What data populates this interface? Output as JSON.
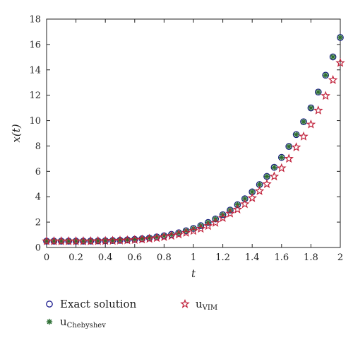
{
  "chart_data": {
    "type": "scatter",
    "xlabel": "t",
    "ylabel": "x(t)",
    "xlim": [
      0,
      2
    ],
    "ylim": [
      0,
      18
    ],
    "xticks": [
      "0",
      "0.2",
      "0.4",
      "0.6",
      "0.8",
      "1",
      "1.2",
      "1.4",
      "1.6",
      "1.8",
      "2"
    ],
    "yticks": [
      "0",
      "2",
      "4",
      "6",
      "8",
      "10",
      "12",
      "14",
      "16",
      "18"
    ],
    "grid": false,
    "legend_position": "bottom",
    "x": [
      0,
      0.05,
      0.1,
      0.15,
      0.2,
      0.25,
      0.3,
      0.35,
      0.4,
      0.45,
      0.5,
      0.55,
      0.6,
      0.65,
      0.7,
      0.75,
      0.8,
      0.85,
      0.9,
      0.95,
      1.0,
      1.05,
      1.1,
      1.15,
      1.2,
      1.25,
      1.3,
      1.35,
      1.4,
      1.45,
      1.5,
      1.55,
      1.6,
      1.65,
      1.7,
      1.75,
      1.8,
      1.85,
      1.9,
      1.95,
      2.0
    ],
    "series": [
      {
        "name": "Exact solution",
        "marker": "circle",
        "color": "#1a1a8c",
        "values": [
          0.5,
          0.5,
          0.5,
          0.5,
          0.5,
          0.5,
          0.51,
          0.52,
          0.53,
          0.55,
          0.57,
          0.6,
          0.64,
          0.69,
          0.75,
          0.83,
          0.92,
          1.03,
          1.16,
          1.32,
          1.5,
          1.72,
          1.97,
          2.25,
          2.58,
          2.95,
          3.37,
          3.84,
          4.38,
          4.96,
          5.6,
          6.32,
          7.1,
          7.96,
          8.9,
          9.91,
          11.0,
          12.25,
          13.58,
          15.02,
          16.55
        ]
      },
      {
        "name": "Chebyshev",
        "label_main": "u",
        "label_sub": "Chebyshev",
        "marker": "asterisk",
        "color": "#2e6b2e",
        "values": [
          0.5,
          0.5,
          0.5,
          0.5,
          0.5,
          0.5,
          0.51,
          0.52,
          0.53,
          0.55,
          0.57,
          0.6,
          0.64,
          0.69,
          0.75,
          0.83,
          0.92,
          1.03,
          1.16,
          1.32,
          1.5,
          1.72,
          1.97,
          2.25,
          2.58,
          2.95,
          3.37,
          3.84,
          4.38,
          4.96,
          5.6,
          6.32,
          7.1,
          7.96,
          8.9,
          9.91,
          11.0,
          12.25,
          13.58,
          15.02,
          16.55
        ]
      },
      {
        "name": "VIM",
        "label_main": "u",
        "label_sub": "VIM",
        "marker": "star",
        "color": "#c0203a",
        "values": [
          0.5,
          0.5,
          0.5,
          0.5,
          0.5,
          0.5,
          0.5,
          0.51,
          0.52,
          0.53,
          0.55,
          0.57,
          0.6,
          0.64,
          0.69,
          0.75,
          0.83,
          0.92,
          1.03,
          1.16,
          1.31,
          1.48,
          1.7,
          1.95,
          2.33,
          2.68,
          3.0,
          3.42,
          3.9,
          4.45,
          5.0,
          5.6,
          6.25,
          7.0,
          7.9,
          8.75,
          9.7,
          10.8,
          11.95,
          13.2,
          14.55
        ]
      }
    ]
  }
}
